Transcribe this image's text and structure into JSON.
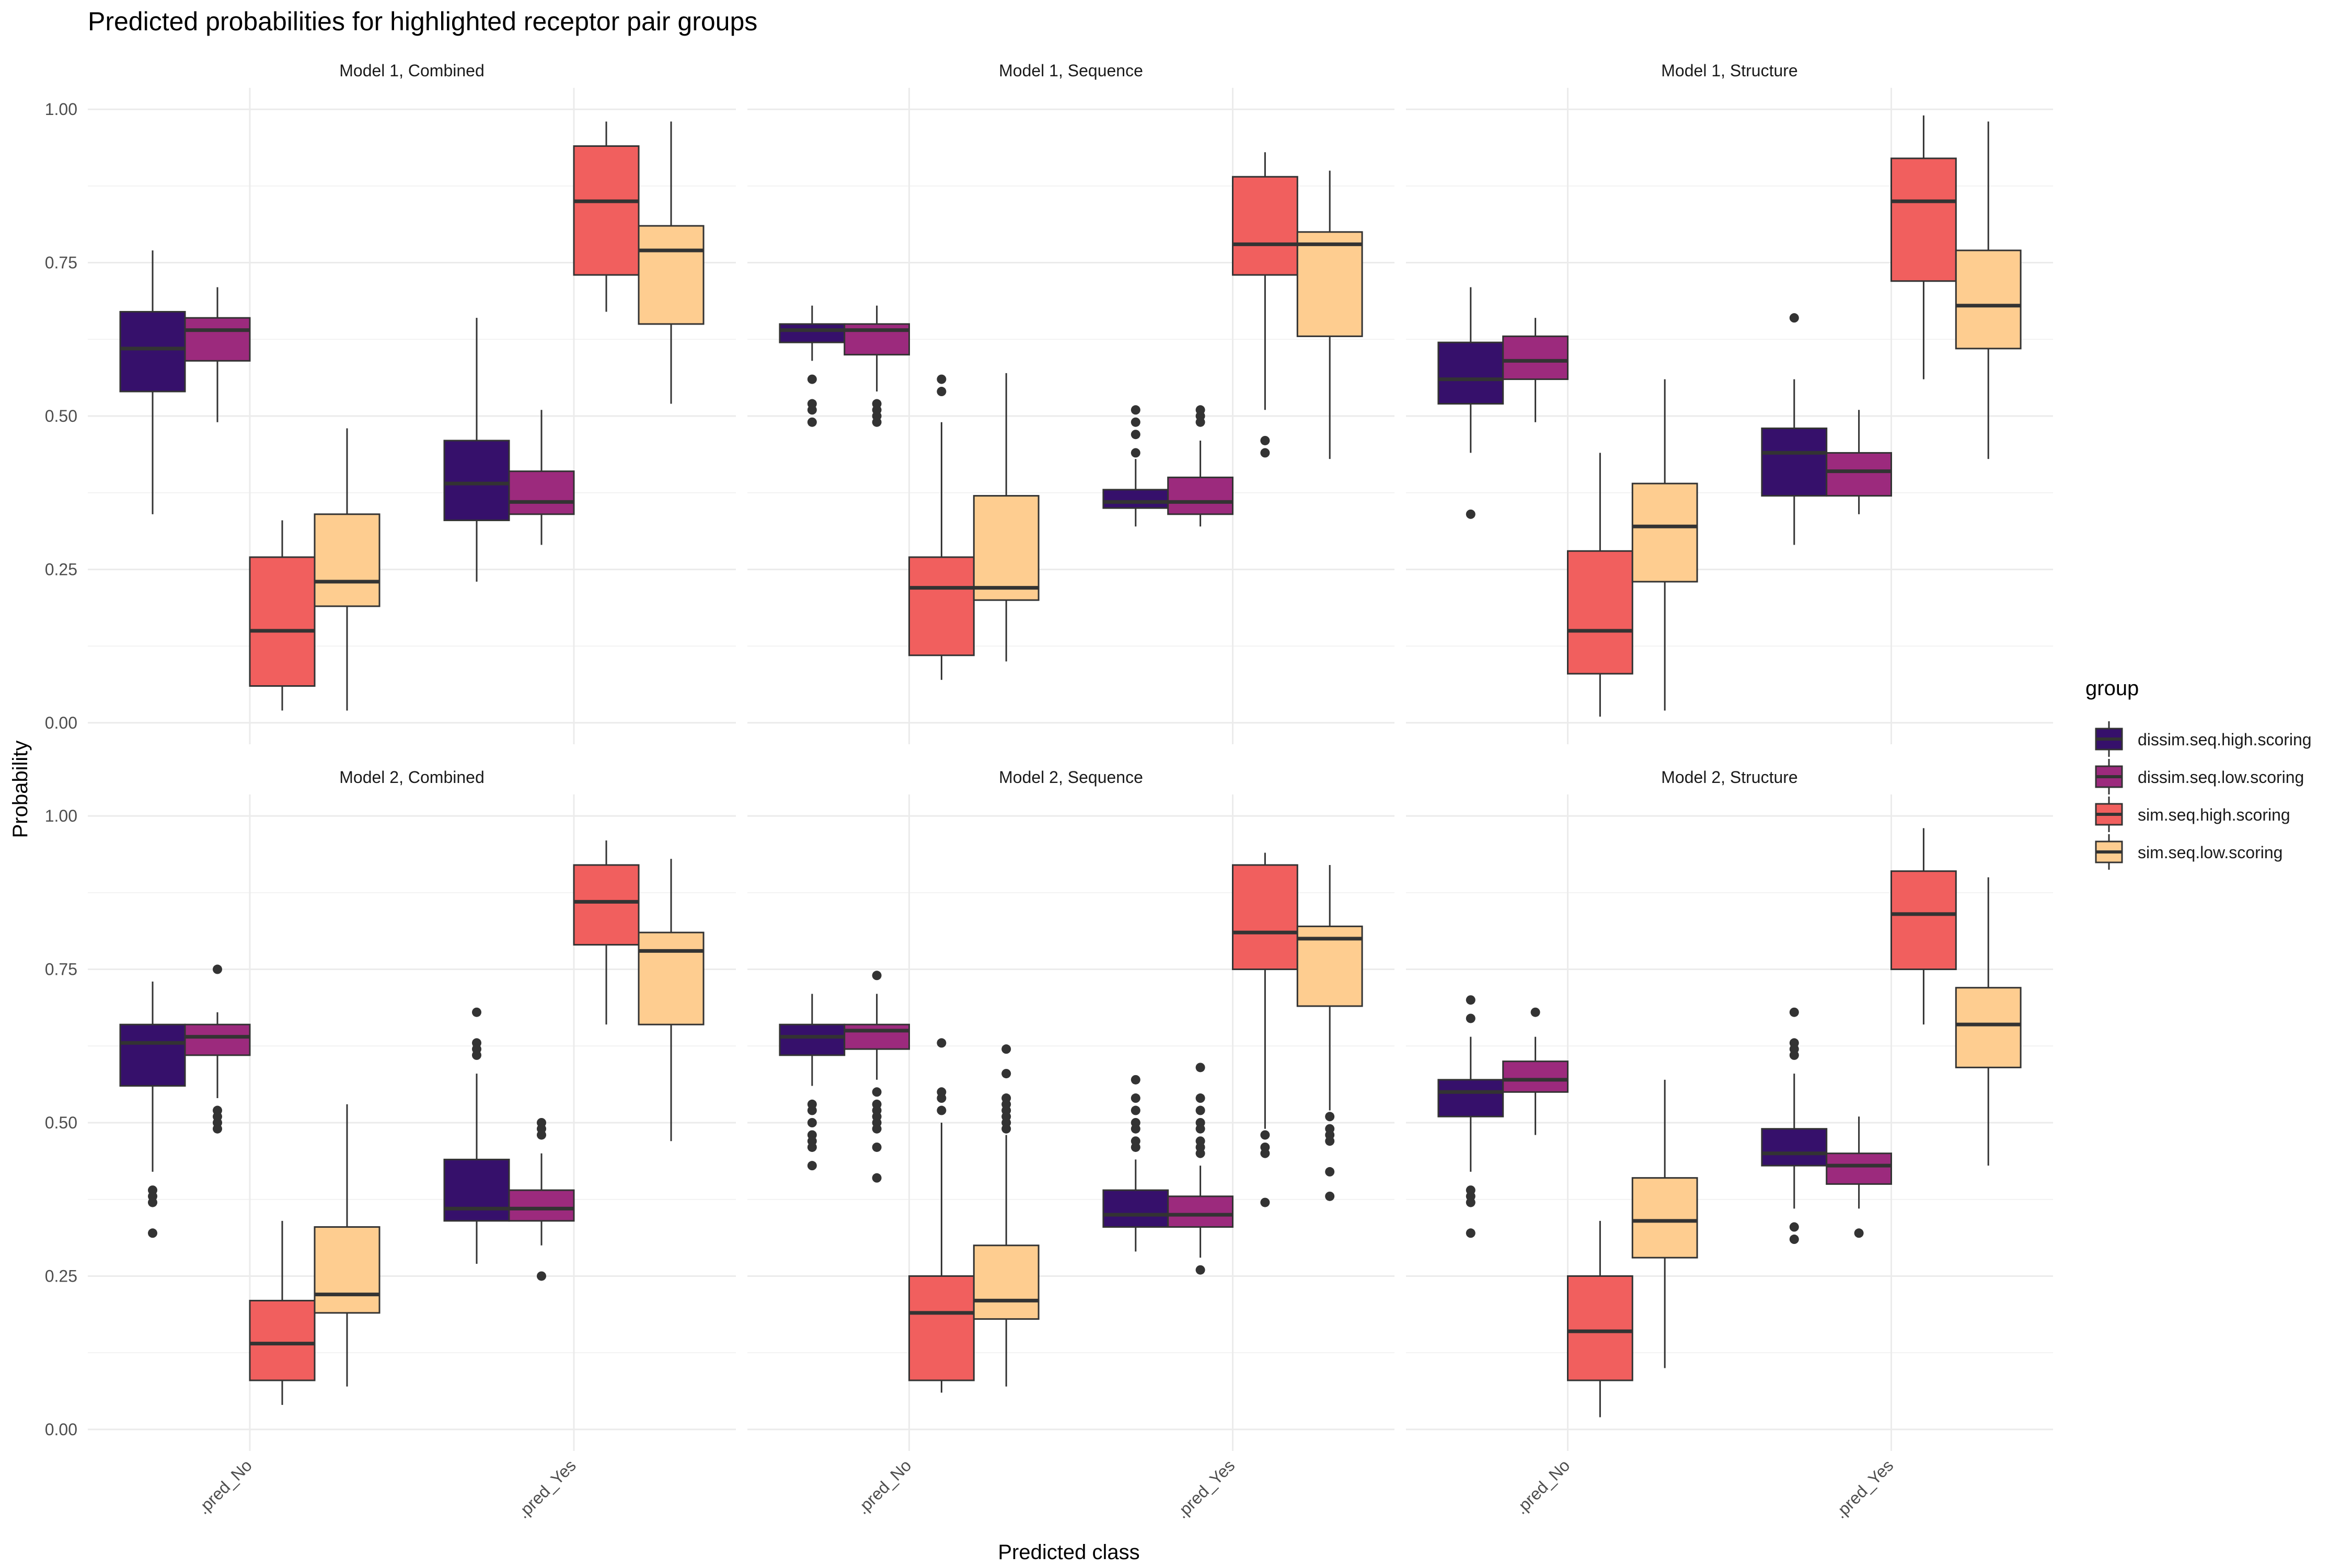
{
  "chart_data": {
    "type": "boxplot",
    "title": "Predicted probabilities for highlighted receptor pair groups",
    "xlabel": "Predicted class",
    "ylabel": "Probability",
    "categories": [
      ".pred_No",
      ".pred_Yes"
    ],
    "ylim": [
      -0.035,
      1.035
    ],
    "yticks": [
      0.0,
      0.25,
      0.5,
      0.75,
      1.0
    ],
    "ytick_labels": [
      "0.00",
      "0.25",
      "0.50",
      "0.75",
      "1.00"
    ],
    "grid": true,
    "legend": {
      "title": "group",
      "position": "right",
      "entries": [
        {
          "name": "dissim.seq.high.scoring",
          "color": "#36106b"
        },
        {
          "name": "dissim.seq.low.scoring",
          "color": "#9c2a7d"
        },
        {
          "name": "sim.seq.high.scoring",
          "color": "#f15f5e"
        },
        {
          "name": "sim.seq.low.scoring",
          "color": "#fecd90"
        }
      ]
    },
    "panels": [
      {
        "title": "Model 1, Combined",
        "boxes": [
          [
            {
              "q1": 0.54,
              "med": 0.61,
              "q3": 0.67,
              "lo": 0.34,
              "hi": 0.77,
              "out": []
            },
            {
              "q1": 0.59,
              "med": 0.64,
              "q3": 0.66,
              "lo": 0.49,
              "hi": 0.71,
              "out": []
            },
            {
              "q1": 0.06,
              "med": 0.15,
              "q3": 0.27,
              "lo": 0.02,
              "hi": 0.33,
              "out": []
            },
            {
              "q1": 0.19,
              "med": 0.23,
              "q3": 0.34,
              "lo": 0.02,
              "hi": 0.48,
              "out": []
            }
          ],
          [
            {
              "q1": 0.33,
              "med": 0.39,
              "q3": 0.46,
              "lo": 0.23,
              "hi": 0.66,
              "out": []
            },
            {
              "q1": 0.34,
              "med": 0.36,
              "q3": 0.41,
              "lo": 0.29,
              "hi": 0.51,
              "out": []
            },
            {
              "q1": 0.73,
              "med": 0.85,
              "q3": 0.94,
              "lo": 0.67,
              "hi": 0.98,
              "out": []
            },
            {
              "q1": 0.65,
              "med": 0.77,
              "q3": 0.81,
              "lo": 0.52,
              "hi": 0.98,
              "out": []
            }
          ]
        ]
      },
      {
        "title": "Model 1, Sequence",
        "boxes": [
          [
            {
              "q1": 0.62,
              "med": 0.64,
              "q3": 0.65,
              "lo": 0.59,
              "hi": 0.68,
              "out": [
                0.56,
                0.52,
                0.51,
                0.49
              ]
            },
            {
              "q1": 0.6,
              "med": 0.64,
              "q3": 0.65,
              "lo": 0.54,
              "hi": 0.68,
              "out": [
                0.52,
                0.51,
                0.5,
                0.49
              ]
            },
            {
              "q1": 0.11,
              "med": 0.22,
              "q3": 0.27,
              "lo": 0.07,
              "hi": 0.49,
              "out": [
                0.56,
                0.54
              ]
            },
            {
              "q1": 0.2,
              "med": 0.22,
              "q3": 0.37,
              "lo": 0.1,
              "hi": 0.57,
              "out": []
            }
          ],
          [
            {
              "q1": 0.35,
              "med": 0.36,
              "q3": 0.38,
              "lo": 0.32,
              "hi": 0.43,
              "out": [
                0.51,
                0.49,
                0.47,
                0.44
              ]
            },
            {
              "q1": 0.34,
              "med": 0.36,
              "q3": 0.4,
              "lo": 0.32,
              "hi": 0.46,
              "out": [
                0.51,
                0.5,
                0.49
              ]
            },
            {
              "q1": 0.73,
              "med": 0.78,
              "q3": 0.89,
              "lo": 0.51,
              "hi": 0.93,
              "out": [
                0.46,
                0.44
              ]
            },
            {
              "q1": 0.63,
              "med": 0.78,
              "q3": 0.8,
              "lo": 0.43,
              "hi": 0.9,
              "out": []
            }
          ]
        ]
      },
      {
        "title": "Model 1, Structure",
        "boxes": [
          [
            {
              "q1": 0.52,
              "med": 0.56,
              "q3": 0.62,
              "lo": 0.44,
              "hi": 0.71,
              "out": [
                0.34
              ]
            },
            {
              "q1": 0.56,
              "med": 0.59,
              "q3": 0.63,
              "lo": 0.49,
              "hi": 0.66,
              "out": []
            },
            {
              "q1": 0.08,
              "med": 0.15,
              "q3": 0.28,
              "lo": 0.01,
              "hi": 0.44,
              "out": []
            },
            {
              "q1": 0.23,
              "med": 0.32,
              "q3": 0.39,
              "lo": 0.02,
              "hi": 0.56,
              "out": []
            }
          ],
          [
            {
              "q1": 0.37,
              "med": 0.44,
              "q3": 0.48,
              "lo": 0.29,
              "hi": 0.56,
              "out": [
                0.66
              ]
            },
            {
              "q1": 0.37,
              "med": 0.41,
              "q3": 0.44,
              "lo": 0.34,
              "hi": 0.51,
              "out": []
            },
            {
              "q1": 0.72,
              "med": 0.85,
              "q3": 0.92,
              "lo": 0.56,
              "hi": 0.99,
              "out": []
            },
            {
              "q1": 0.61,
              "med": 0.68,
              "q3": 0.77,
              "lo": 0.43,
              "hi": 0.98,
              "out": []
            }
          ]
        ]
      },
      {
        "title": "Model 2, Combined",
        "boxes": [
          [
            {
              "q1": 0.56,
              "med": 0.63,
              "q3": 0.66,
              "lo": 0.42,
              "hi": 0.73,
              "out": [
                0.39,
                0.38,
                0.37,
                0.32
              ]
            },
            {
              "q1": 0.61,
              "med": 0.64,
              "q3": 0.66,
              "lo": 0.54,
              "hi": 0.68,
              "out": [
                0.75,
                0.52,
                0.51,
                0.5,
                0.49
              ]
            },
            {
              "q1": 0.08,
              "med": 0.14,
              "q3": 0.21,
              "lo": 0.04,
              "hi": 0.34,
              "out": []
            },
            {
              "q1": 0.19,
              "med": 0.22,
              "q3": 0.33,
              "lo": 0.07,
              "hi": 0.53,
              "out": []
            }
          ],
          [
            {
              "q1": 0.34,
              "med": 0.36,
              "q3": 0.44,
              "lo": 0.27,
              "hi": 0.58,
              "out": [
                0.68,
                0.63,
                0.62,
                0.61
              ]
            },
            {
              "q1": 0.34,
              "med": 0.36,
              "q3": 0.39,
              "lo": 0.3,
              "hi": 0.45,
              "out": [
                0.5,
                0.49,
                0.48,
                0.25
              ]
            },
            {
              "q1": 0.79,
              "med": 0.86,
              "q3": 0.92,
              "lo": 0.66,
              "hi": 0.96,
              "out": []
            },
            {
              "q1": 0.66,
              "med": 0.78,
              "q3": 0.81,
              "lo": 0.47,
              "hi": 0.93,
              "out": []
            }
          ]
        ]
      },
      {
        "title": "Model 2, Sequence",
        "boxes": [
          [
            {
              "q1": 0.61,
              "med": 0.64,
              "q3": 0.66,
              "lo": 0.56,
              "hi": 0.71,
              "out": [
                0.53,
                0.52,
                0.5,
                0.48,
                0.47,
                0.46,
                0.43
              ]
            },
            {
              "q1": 0.62,
              "med": 0.65,
              "q3": 0.66,
              "lo": 0.57,
              "hi": 0.71,
              "out": [
                0.74,
                0.55,
                0.53,
                0.52,
                0.51,
                0.5,
                0.49,
                0.46,
                0.41
              ]
            },
            {
              "q1": 0.08,
              "med": 0.19,
              "q3": 0.25,
              "lo": 0.06,
              "hi": 0.5,
              "out": [
                0.63,
                0.55,
                0.54,
                0.52
              ]
            },
            {
              "q1": 0.18,
              "med": 0.21,
              "q3": 0.3,
              "lo": 0.07,
              "hi": 0.48,
              "out": [
                0.62,
                0.58,
                0.54,
                0.53,
                0.52,
                0.51,
                0.5,
                0.49
              ]
            }
          ],
          [
            {
              "q1": 0.33,
              "med": 0.35,
              "q3": 0.39,
              "lo": 0.29,
              "hi": 0.44,
              "out": [
                0.57,
                0.54,
                0.52,
                0.5,
                0.49,
                0.47,
                0.46
              ]
            },
            {
              "q1": 0.33,
              "med": 0.35,
              "q3": 0.38,
              "lo": 0.28,
              "hi": 0.43,
              "out": [
                0.59,
                0.54,
                0.52,
                0.5,
                0.49,
                0.47,
                0.46,
                0.45,
                0.26
              ]
            },
            {
              "q1": 0.75,
              "med": 0.81,
              "q3": 0.92,
              "lo": 0.49,
              "hi": 0.94,
              "out": [
                0.48,
                0.46,
                0.45,
                0.37
              ]
            },
            {
              "q1": 0.69,
              "med": 0.8,
              "q3": 0.82,
              "lo": 0.52,
              "hi": 0.92,
              "out": [
                0.51,
                0.49,
                0.48,
                0.47,
                0.42,
                0.38
              ]
            }
          ]
        ]
      },
      {
        "title": "Model 2, Structure",
        "boxes": [
          [
            {
              "q1": 0.51,
              "med": 0.55,
              "q3": 0.57,
              "lo": 0.42,
              "hi": 0.64,
              "out": [
                0.7,
                0.67,
                0.39,
                0.38,
                0.37,
                0.32
              ]
            },
            {
              "q1": 0.55,
              "med": 0.57,
              "q3": 0.6,
              "lo": 0.48,
              "hi": 0.64,
              "out": [
                0.68
              ]
            },
            {
              "q1": 0.08,
              "med": 0.16,
              "q3": 0.25,
              "lo": 0.02,
              "hi": 0.34,
              "out": []
            },
            {
              "q1": 0.28,
              "med": 0.34,
              "q3": 0.41,
              "lo": 0.1,
              "hi": 0.57,
              "out": []
            }
          ],
          [
            {
              "q1": 0.43,
              "med": 0.45,
              "q3": 0.49,
              "lo": 0.36,
              "hi": 0.58,
              "out": [
                0.68,
                0.63,
                0.62,
                0.61,
                0.33,
                0.31
              ]
            },
            {
              "q1": 0.4,
              "med": 0.43,
              "q3": 0.45,
              "lo": 0.36,
              "hi": 0.51,
              "out": [
                0.32
              ]
            },
            {
              "q1": 0.75,
              "med": 0.84,
              "q3": 0.91,
              "lo": 0.66,
              "hi": 0.98,
              "out": []
            },
            {
              "q1": 0.59,
              "med": 0.66,
              "q3": 0.72,
              "lo": 0.43,
              "hi": 0.9,
              "out": []
            }
          ]
        ]
      }
    ]
  }
}
